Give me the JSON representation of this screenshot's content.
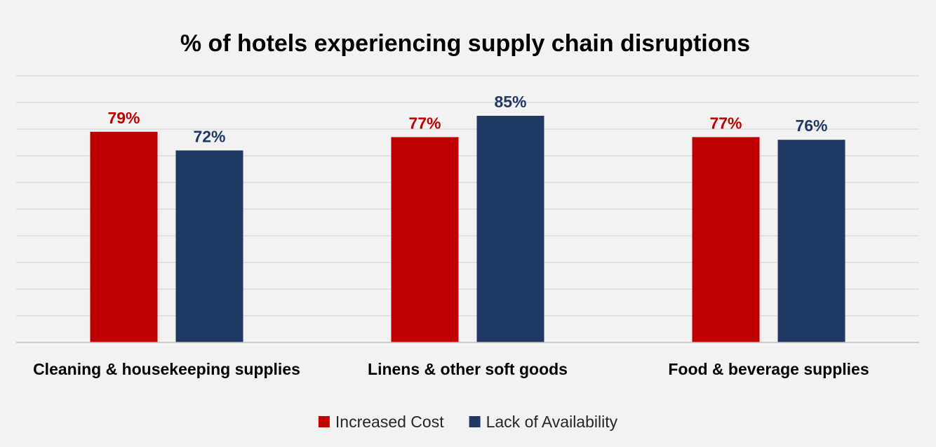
{
  "chart_data": {
    "type": "bar",
    "title": "% of hotels experiencing supply chain disruptions",
    "categories": [
      "Cleaning & housekeeping supplies",
      "Linens & other soft goods",
      "Food & beverage supplies"
    ],
    "series": [
      {
        "name": "Increased Cost",
        "color": "#c00000",
        "values": [
          79,
          77,
          77
        ],
        "labels": [
          "79%",
          "77%",
          "77%"
        ]
      },
      {
        "name": "Lack of Availability",
        "color": "#203864",
        "values": [
          72,
          85,
          76
        ],
        "labels": [
          "72%",
          "85%",
          "76%"
        ]
      }
    ],
    "xlabel": "",
    "ylabel": "",
    "ylim": [
      0,
      100
    ],
    "grid": true,
    "gridlines": 10,
    "legend_position": "bottom-center",
    "colors": {
      "background": "#f2f2f2",
      "gridline": "#d9d9d9",
      "axis": "#bfbfbf"
    }
  }
}
